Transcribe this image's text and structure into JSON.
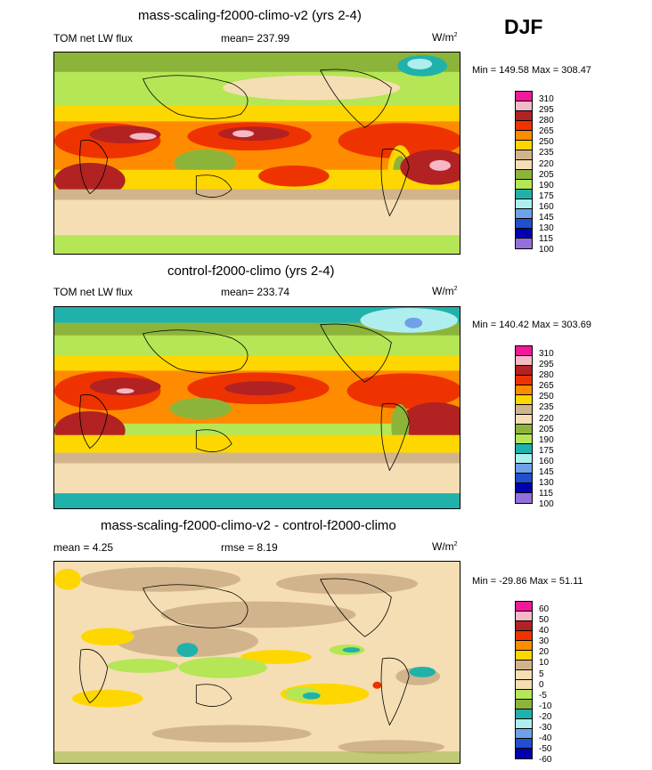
{
  "season": "DJF",
  "panels": [
    {
      "title": "mass-scaling-f2000-climo-v2 (yrs 2-4)",
      "left_label": "TOM net LW flux",
      "center_label": "mean= 237.99",
      "units": "W/m",
      "units_sup": "2",
      "minmax": "Min = 149.58 Max = 308.47",
      "levels": [
        "310",
        "295",
        "280",
        "265",
        "250",
        "235",
        "220",
        "205",
        "190",
        "175",
        "160",
        "145",
        "130",
        "115",
        "100"
      ]
    },
    {
      "title": "control-f2000-climo (yrs 2-4)",
      "left_label": "TOM net LW flux",
      "center_label": "mean= 233.74",
      "units": "W/m",
      "units_sup": "2",
      "minmax": "Min = 140.42 Max = 303.69",
      "levels": [
        "310",
        "295",
        "280",
        "265",
        "250",
        "235",
        "220",
        "205",
        "190",
        "175",
        "160",
        "145",
        "130",
        "115",
        "100"
      ]
    },
    {
      "title": "mass-scaling-f2000-climo-v2 - control-f2000-climo",
      "left_label": "mean =   4.25",
      "center_label": "rmse =   8.19",
      "units": "W/m",
      "units_sup": "2",
      "minmax": "Min = -29.86 Max =  51.11",
      "levels": [
        "60",
        "50",
        "40",
        "30",
        "20",
        "10",
        "5",
        "0",
        "-5",
        "-10",
        "-20",
        "-30",
        "-40",
        "-50",
        "-60"
      ]
    }
  ],
  "colors": {
    "abs_scale": [
      "#f0199a",
      "#f5b8c6",
      "#b22222",
      "#ee3300",
      "#ff8c00",
      "#ffd700",
      "#d2b48c",
      "#f5deb3",
      "#8db43a",
      "#b5e655",
      "#20b2aa",
      "#afeeee",
      "#6fa0e8",
      "#2050d0",
      "#0000b0",
      "#9370db"
    ],
    "diff_scale": [
      "#f0199a",
      "#f5b8c6",
      "#b22222",
      "#ee3300",
      "#ff8c00",
      "#ffd700",
      "#d2b48c",
      "#f5deb3",
      "#f5deb3",
      "#b5e655",
      "#8db43a",
      "#20b2aa",
      "#afeeee",
      "#6fa0e8",
      "#2050d0",
      "#0000b0",
      "#9370db"
    ]
  }
}
